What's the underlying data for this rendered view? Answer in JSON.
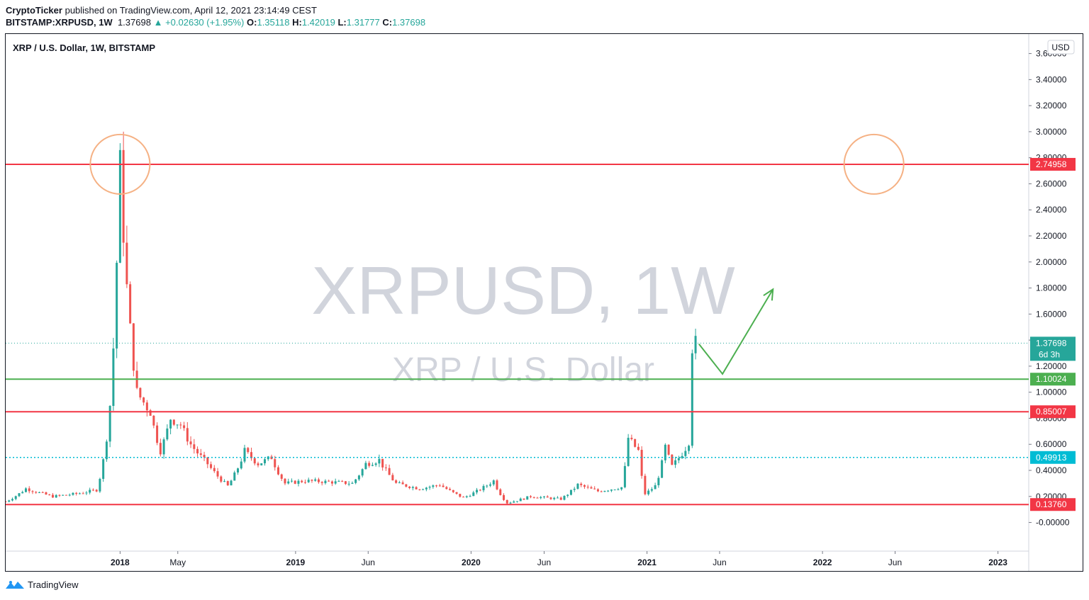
{
  "header": {
    "author": "CryptoTicker",
    "published": "published on TradingView.com, April 12, 2021 23:14:49 CEST",
    "symbol": "BITSTAMP:XRPUSD, 1W",
    "last": "1.37698",
    "change": "+0.02630 (+1.95%)",
    "o_label": "O:",
    "o_value": "1.35118",
    "h_label": "H:",
    "h_value": "1.42019",
    "l_label": "L:",
    "l_value": "1.31777",
    "c_label": "C:",
    "c_value": "1.37698"
  },
  "footer": {
    "brand": "TradingView"
  },
  "colors": {
    "up": "#26a69a",
    "down": "#ef5350",
    "resistance": "#f23645",
    "support": "#4caf50",
    "dotted": "#00bcd4",
    "circle": "#f5b184",
    "arrow": "#4caf50",
    "watermark": "#d1d4dc"
  },
  "chart_data": {
    "type": "candlestick",
    "title": "XRP / U.S. Dollar, 1W, BITSTAMP",
    "watermark_symbol": "XRPUSD, 1W",
    "watermark_name": "XRP / U.S. Dollar",
    "currency_label": "USD",
    "x_ticks": [
      {
        "label": "2018",
        "date": "2018-01-01",
        "bold": true
      },
      {
        "label": "May",
        "date": "2018-05-01",
        "bold": false
      },
      {
        "label": "2019",
        "date": "2019-01-01",
        "bold": true
      },
      {
        "label": "Jun",
        "date": "2019-06-01",
        "bold": false
      },
      {
        "label": "2020",
        "date": "2020-01-01",
        "bold": true
      },
      {
        "label": "Jun",
        "date": "2020-06-01",
        "bold": false
      },
      {
        "label": "2021",
        "date": "2021-01-01",
        "bold": true
      },
      {
        "label": "Jun",
        "date": "2021-06-01",
        "bold": false
      },
      {
        "label": "2022",
        "date": "2022-01-01",
        "bold": true
      },
      {
        "label": "Jun",
        "date": "2022-06-01",
        "bold": false
      },
      {
        "label": "2023",
        "date": "2023-01-01",
        "bold": true
      }
    ],
    "x_range": [
      "2017-05-08",
      "2023-03-06"
    ],
    "y_ticks": [
      "-0.00000",
      "0.20000",
      "0.40000",
      "0.60000",
      "0.80000",
      "1.00000",
      "1.20000",
      "1.40000",
      "1.60000",
      "1.80000",
      "2.00000",
      "2.20000",
      "2.40000",
      "2.60000",
      "2.80000",
      "3.00000",
      "3.20000",
      "3.40000",
      "3.60000"
    ],
    "y_tick_values": [
      0,
      0.2,
      0.4,
      0.6,
      0.8,
      1.0,
      1.2,
      1.4,
      1.6,
      1.8,
      2.0,
      2.2,
      2.4,
      2.6,
      2.8,
      3.0,
      3.2,
      3.4,
      3.6
    ],
    "ylim": [
      -0.22,
      3.75
    ],
    "horizontal_lines": [
      {
        "value": 2.74958,
        "label": "2.74958",
        "style": "solid",
        "color": "resistance"
      },
      {
        "value": 1.10024,
        "label": "1.10024",
        "style": "solid",
        "color": "support"
      },
      {
        "value": 0.85007,
        "label": "0.85007",
        "style": "solid",
        "color": "resistance"
      },
      {
        "value": 0.49913,
        "label": "0.49913",
        "style": "dotted",
        "color": "dotted"
      },
      {
        "value": 0.1376,
        "label": "0.13760",
        "style": "solid",
        "color": "resistance"
      }
    ],
    "last_price": {
      "value": 1.37698,
      "label": "1.37698",
      "countdown": "6d 3h"
    },
    "circles": [
      {
        "date": "2018-01-01",
        "value": 2.75
      },
      {
        "date": "2022-04-18",
        "value": 2.75
      }
    ],
    "arrow_path": [
      {
        "date": "2021-04-19",
        "value": 1.37
      },
      {
        "date": "2021-06-07",
        "value": 1.14
      },
      {
        "date": "2021-09-20",
        "value": 1.79
      }
    ],
    "price_path": [
      {
        "date": "2017-05-08",
        "value": 0.16
      },
      {
        "date": "2017-06-19",
        "value": 0.26
      },
      {
        "date": "2017-08-14",
        "value": 0.2
      },
      {
        "date": "2017-10-02",
        "value": 0.22
      },
      {
        "date": "2017-11-13",
        "value": 0.25
      },
      {
        "date": "2017-12-11",
        "value": 0.9
      },
      {
        "date": "2017-12-25",
        "value": 2.0
      },
      {
        "date": "2018-01-01",
        "value": 2.75
      },
      {
        "date": "2018-01-15",
        "value": 1.8
      },
      {
        "date": "2018-02-05",
        "value": 1.0
      },
      {
        "date": "2018-03-05",
        "value": 0.85
      },
      {
        "date": "2018-03-26",
        "value": 0.55
      },
      {
        "date": "2018-04-16",
        "value": 0.8
      },
      {
        "date": "2018-05-07",
        "value": 0.75
      },
      {
        "date": "2018-05-28",
        "value": 0.6
      },
      {
        "date": "2018-07-02",
        "value": 0.45
      },
      {
        "date": "2018-08-13",
        "value": 0.28
      },
      {
        "date": "2018-09-17",
        "value": 0.55
      },
      {
        "date": "2018-10-15",
        "value": 0.45
      },
      {
        "date": "2018-11-12",
        "value": 0.5
      },
      {
        "date": "2018-12-10",
        "value": 0.3
      },
      {
        "date": "2019-01-21",
        "value": 0.32
      },
      {
        "date": "2019-03-18",
        "value": 0.31
      },
      {
        "date": "2019-04-29",
        "value": 0.3
      },
      {
        "date": "2019-05-27",
        "value": 0.45
      },
      {
        "date": "2019-06-24",
        "value": 0.48
      },
      {
        "date": "2019-07-29",
        "value": 0.3
      },
      {
        "date": "2019-09-16",
        "value": 0.26
      },
      {
        "date": "2019-10-28",
        "value": 0.29
      },
      {
        "date": "2019-12-16",
        "value": 0.19
      },
      {
        "date": "2020-02-17",
        "value": 0.32
      },
      {
        "date": "2020-03-16",
        "value": 0.15
      },
      {
        "date": "2020-05-04",
        "value": 0.2
      },
      {
        "date": "2020-07-06",
        "value": 0.18
      },
      {
        "date": "2020-08-10",
        "value": 0.29
      },
      {
        "date": "2020-09-21",
        "value": 0.24
      },
      {
        "date": "2020-11-09",
        "value": 0.27
      },
      {
        "date": "2020-11-23",
        "value": 0.65
      },
      {
        "date": "2020-12-14",
        "value": 0.55
      },
      {
        "date": "2020-12-28",
        "value": 0.22
      },
      {
        "date": "2021-01-18",
        "value": 0.28
      },
      {
        "date": "2021-02-08",
        "value": 0.58
      },
      {
        "date": "2021-02-22",
        "value": 0.43
      },
      {
        "date": "2021-03-22",
        "value": 0.57
      },
      {
        "date": "2021-03-29",
        "value": 0.62
      },
      {
        "date": "2021-04-05",
        "value": 1.35
      },
      {
        "date": "2021-04-12",
        "value": 1.37698
      }
    ]
  }
}
